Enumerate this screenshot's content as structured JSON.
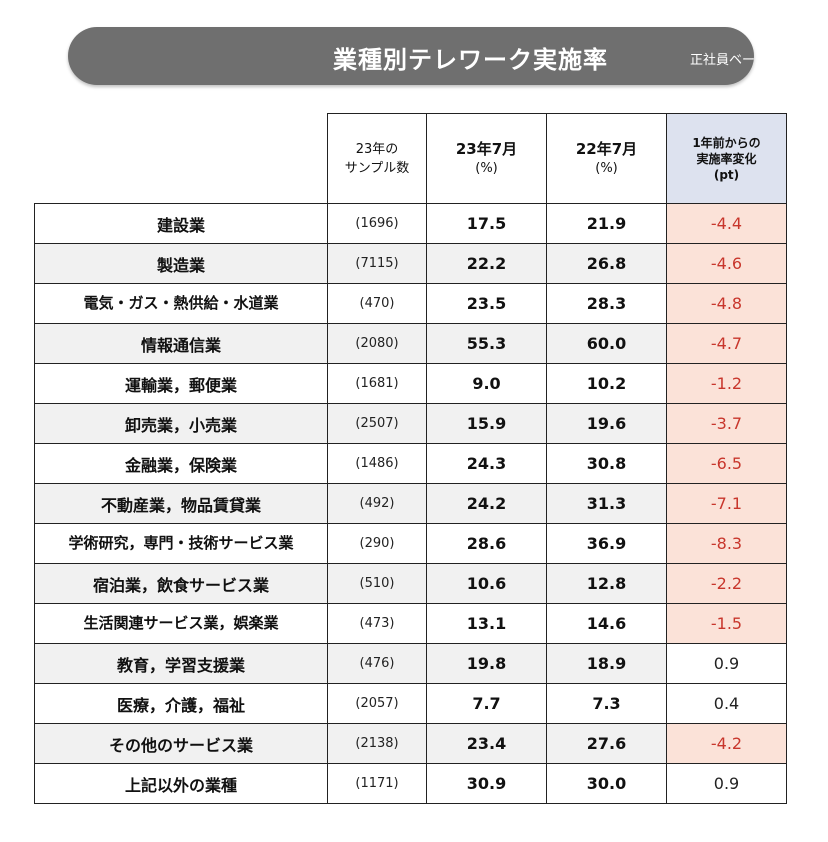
{
  "title": "業種別テレワーク実施率",
  "subtitle": "正社員ベース",
  "columns": {
    "sample": [
      "23年の",
      "サンプル数"
    ],
    "jul23": [
      "23年7月",
      "(%)"
    ],
    "jul22": [
      "22年7月",
      "(%)"
    ],
    "change": [
      "1年前からの",
      "実施率変化",
      "(pt)"
    ]
  },
  "colors": {
    "negative_fill": "#fbe2d8",
    "negative_text": "#c8362c",
    "header_change_fill": "#dde2ef",
    "banner": "#6f6f6f"
  },
  "chart_data": {
    "type": "table",
    "title": "業種別テレワーク実施率",
    "subtitle": "正社員ベース",
    "rows": [
      {
        "category": "建設業",
        "sample": "(1696)",
        "jul23": "17.5",
        "jul22": "21.9",
        "change": "-4.4"
      },
      {
        "category": "製造業",
        "sample": "(7115)",
        "jul23": "22.2",
        "jul22": "26.8",
        "change": "-4.6"
      },
      {
        "category": "電気・ガス・熱供給・水道業",
        "sample": "(470)",
        "jul23": "23.5",
        "jul22": "28.3",
        "change": "-4.8"
      },
      {
        "category": "情報通信業",
        "sample": "(2080)",
        "jul23": "55.3",
        "jul22": "60.0",
        "change": "-4.7"
      },
      {
        "category": "運輸業，郵便業",
        "sample": "(1681)",
        "jul23": "9.0",
        "jul22": "10.2",
        "change": "-1.2"
      },
      {
        "category": "卸売業，小売業",
        "sample": "(2507)",
        "jul23": "15.9",
        "jul22": "19.6",
        "change": "-3.7"
      },
      {
        "category": "金融業，保険業",
        "sample": "(1486)",
        "jul23": "24.3",
        "jul22": "30.8",
        "change": "-6.5"
      },
      {
        "category": "不動産業，物品賃貸業",
        "sample": "(492)",
        "jul23": "24.2",
        "jul22": "31.3",
        "change": "-7.1"
      },
      {
        "category": "学術研究，専門・技術サービス業",
        "sample": "(290)",
        "jul23": "28.6",
        "jul22": "36.9",
        "change": "-8.3"
      },
      {
        "category": "宿泊業，飲食サービス業",
        "sample": "(510)",
        "jul23": "10.6",
        "jul22": "12.8",
        "change": "-2.2"
      },
      {
        "category": "生活関連サービス業，娯楽業",
        "sample": "(473)",
        "jul23": "13.1",
        "jul22": "14.6",
        "change": "-1.5"
      },
      {
        "category": "教育，学習支援業",
        "sample": "(476)",
        "jul23": "19.8",
        "jul22": "18.9",
        "change": "0.9"
      },
      {
        "category": "医療，介護，福祉",
        "sample": "(2057)",
        "jul23": "7.7",
        "jul22": "7.3",
        "change": "0.4"
      },
      {
        "category": "その他のサービス業",
        "sample": "(2138)",
        "jul23": "23.4",
        "jul22": "27.6",
        "change": "-4.2"
      },
      {
        "category": "上記以外の業種",
        "sample": "(1171)",
        "jul23": "30.9",
        "jul22": "30.0",
        "change": "0.9"
      }
    ]
  }
}
